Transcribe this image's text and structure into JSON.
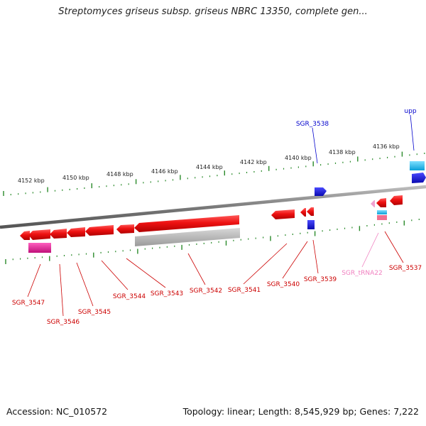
{
  "title": "Streptomyces griseus subsp. griseus NBRC 13350, complete gen...",
  "footer": {
    "accession": "Accession: NC_010572",
    "summary": "Topology: linear; Length: 8,545,929 bp; Genes: 7,222"
  },
  "kbp_labels": [
    "4152 kbp",
    "4150 kbp",
    "4148 kbp",
    "4146 kbp",
    "4144 kbp",
    "4142 kbp",
    "4140 kbp",
    "4138 kbp",
    "4136 kbp"
  ],
  "colors": {
    "backbone": "#888888",
    "ticks": "#2a8a2a",
    "gene_red": "#e01010",
    "gene_blue": "#1a1ad8",
    "gene_cyan": "#19b6e6",
    "gene_magenta": "#d81f8f",
    "trna_pink": "#f080c0",
    "gray_feature": "#b4b4b4"
  },
  "labels": [
    {
      "text": "SGR_3538",
      "color": "#0000cc"
    },
    {
      "text": "upp",
      "color": "#0000cc"
    },
    {
      "text": "SGR_3547",
      "color": "#cc0000"
    },
    {
      "text": "SGR_3546",
      "color": "#cc0000"
    },
    {
      "text": "SGR_3545",
      "color": "#cc0000"
    },
    {
      "text": "SGR_3544",
      "color": "#cc0000"
    },
    {
      "text": "SGR_3543",
      "color": "#cc0000"
    },
    {
      "text": "SGR_3542",
      "color": "#cc0000"
    },
    {
      "text": "SGR_3541",
      "color": "#cc0000"
    },
    {
      "text": "SGR_3540",
      "color": "#cc0000"
    },
    {
      "text": "SGR_3539",
      "color": "#cc0000"
    },
    {
      "text": "SGR_tRNA22",
      "color": "#f080c0"
    },
    {
      "text": "SGR_3537",
      "color": "#cc0000"
    }
  ]
}
